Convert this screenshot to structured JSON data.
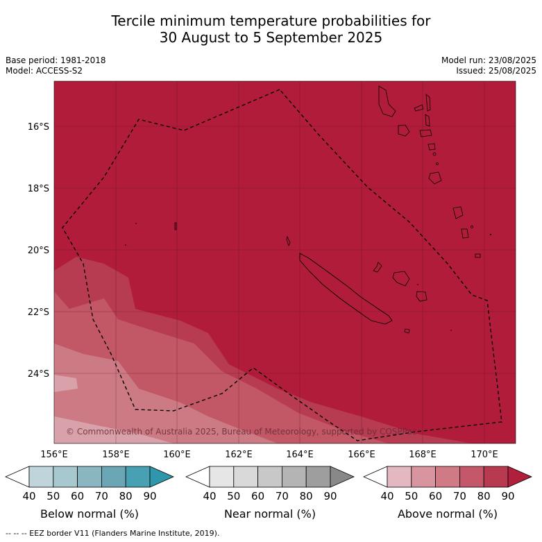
{
  "title_line1": "Tercile minimum temperature probabilities for",
  "title_line2": "30 August to 5 September 2025",
  "base_period": "Base period: 1981-2018",
  "model": "Model: ACCESS-S2",
  "model_run": "Model run: 23/08/2025",
  "issued": "Issued: 25/08/2025",
  "copyright": "© Commonwealth of Australia 2025, Bureau of Meteorology, supported by COSPPac",
  "footer": "--  --  -- EEZ border V11 (Flanders Marine Institute, 2019).",
  "lat_ticks": [
    "16°S",
    "18°S",
    "20°S",
    "22°S",
    "24°S"
  ],
  "lon_ticks": [
    "156°E",
    "158°E",
    "160°E",
    "162°E",
    "164°E",
    "166°E",
    "168°E",
    "170°E"
  ],
  "colorbars": [
    {
      "label": "Below normal (%)",
      "ticks": [
        "40",
        "50",
        "60",
        "70",
        "80",
        "90"
      ],
      "colors": [
        "#ffffff",
        "#c0d4db",
        "#a6c8ce",
        "#8ab6c1",
        "#6aa6b4",
        "#48a1b2",
        "#2f97ab"
      ]
    },
    {
      "label": "Near normal (%)",
      "ticks": [
        "40",
        "50",
        "60",
        "70",
        "80",
        "90"
      ],
      "colors": [
        "#ffffff",
        "#e6e6e6",
        "#d9d9d9",
        "#c8c8c8",
        "#b4b4b4",
        "#9e9e9e",
        "#888888"
      ]
    },
    {
      "label": "Above normal (%)",
      "ticks": [
        "40",
        "50",
        "60",
        "70",
        "80",
        "90"
      ],
      "colors": [
        "#ffffff",
        "#e3b8c0",
        "#d9959f",
        "#cf7a84",
        "#c5576a",
        "#b83a50",
        "#b01f3c"
      ]
    }
  ],
  "colors": {
    "above_90": "#b01c3a",
    "above_80": "#b73b51",
    "above_70": "#c25766",
    "above_60": "#cc7a84",
    "above_50": "#d9a2ab"
  }
}
